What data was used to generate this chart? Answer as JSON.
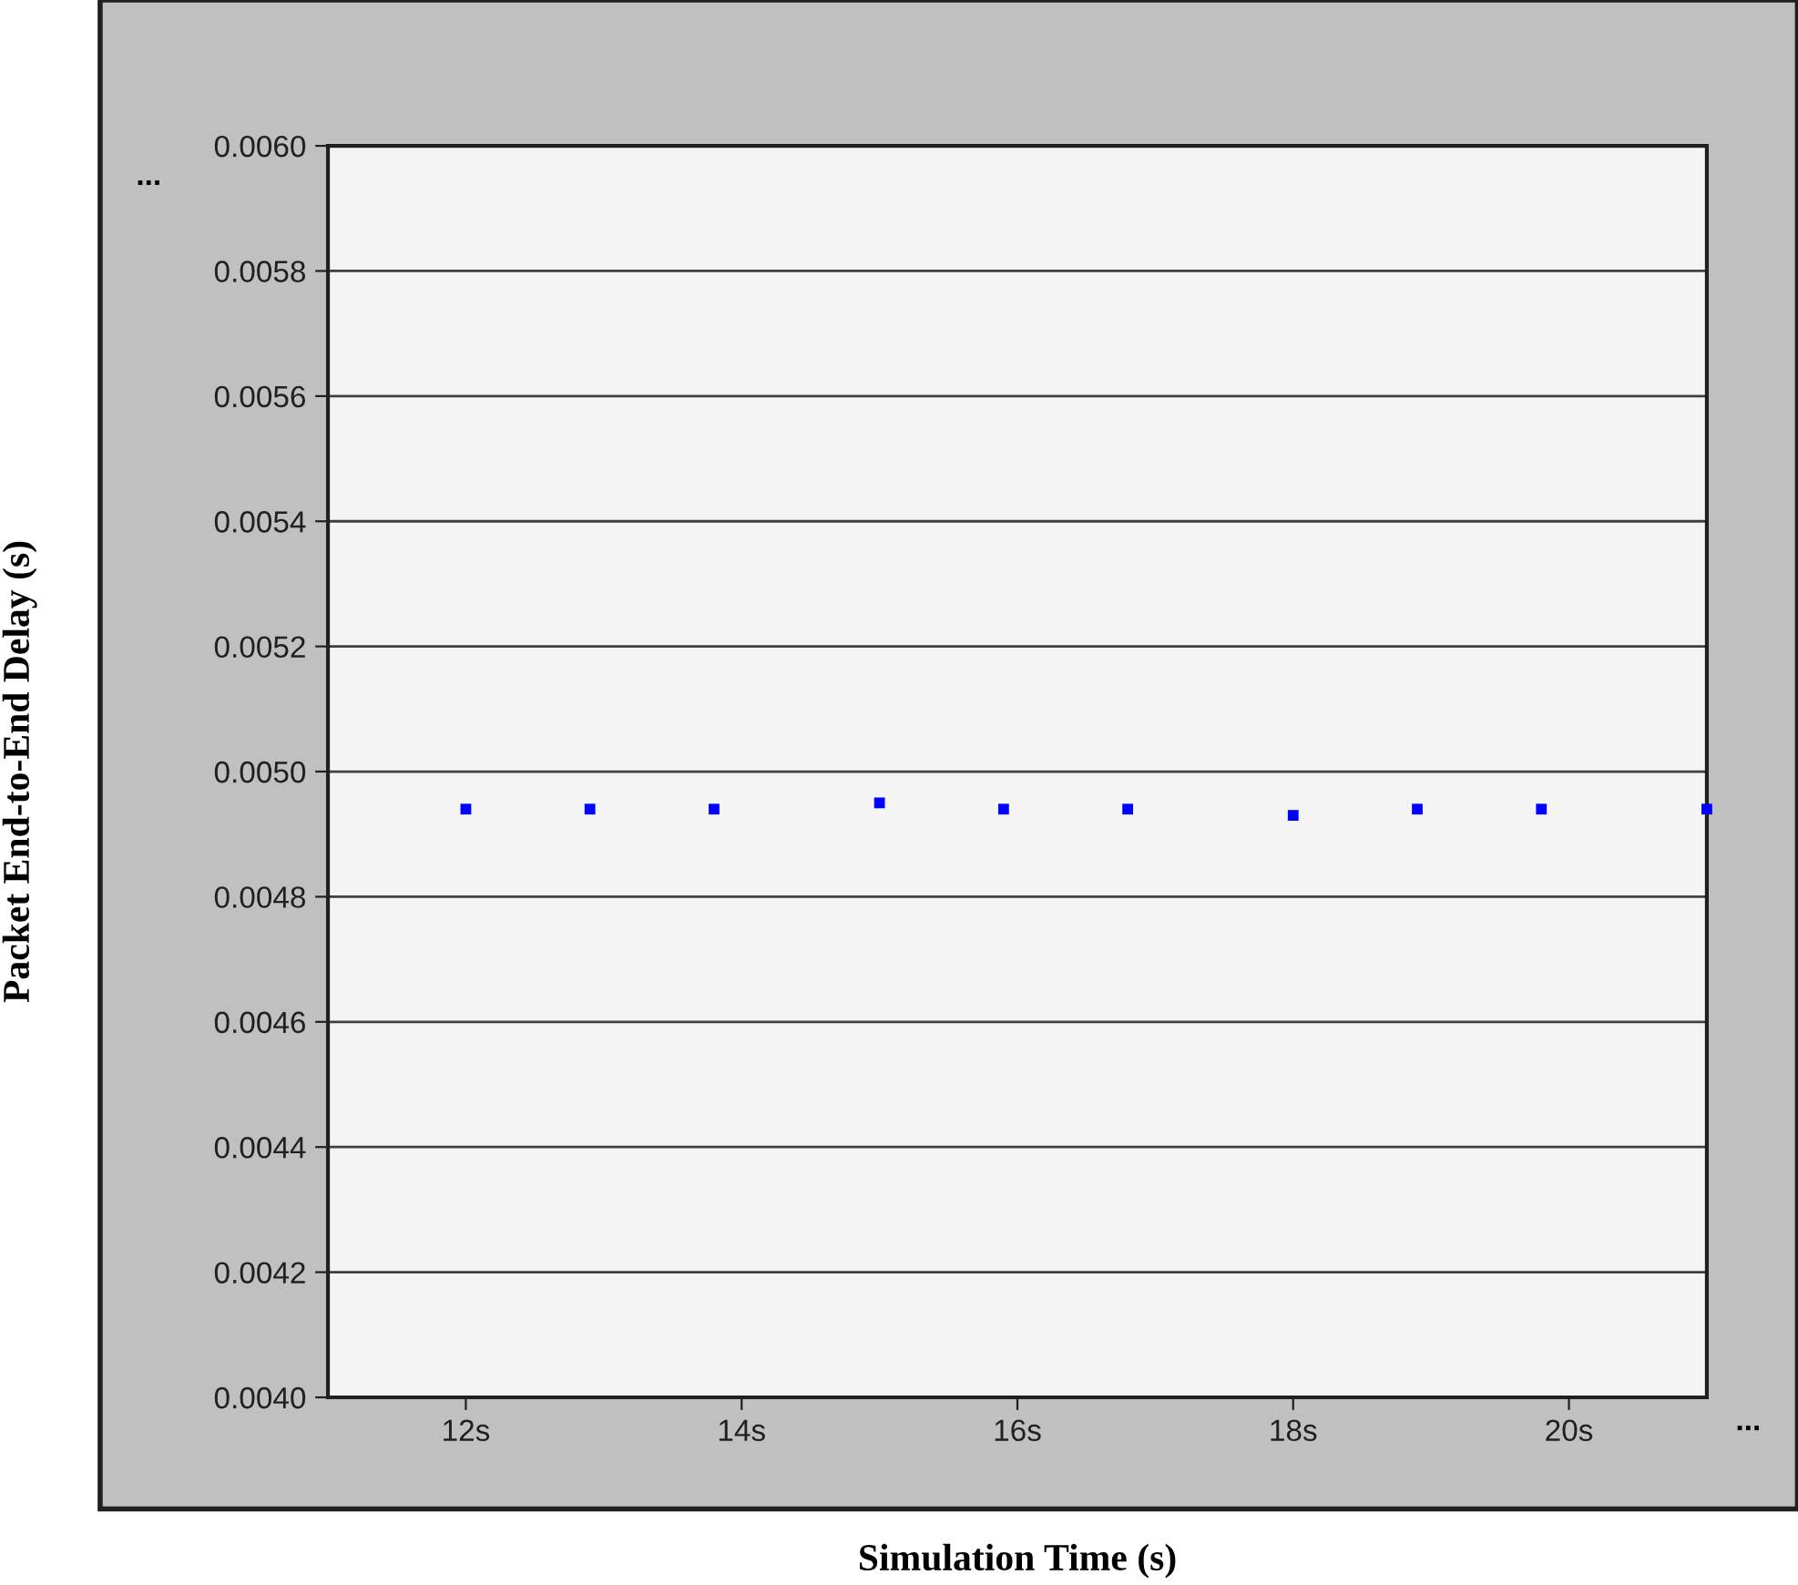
{
  "chart_data": {
    "type": "scatter",
    "xlabel": "Simulation Time (s)",
    "ylabel": "Packet End-to-End Delay (s)",
    "x": [
      12,
      12.9,
      13.8,
      15.0,
      15.9,
      16.8,
      18.0,
      18.9,
      19.8,
      21.0
    ],
    "series": [
      {
        "color": "#0000ff",
        "values": [
          0.00494,
          0.00494,
          0.00494,
          0.00495,
          0.00494,
          0.00494,
          0.00493,
          0.00494,
          0.00494,
          0.00494
        ]
      }
    ],
    "xlim": [
      11,
      21
    ],
    "ylim": [
      0.004,
      0.006
    ],
    "xticks": [
      {
        "value": 12,
        "label": "12s"
      },
      {
        "value": 14,
        "label": "14s"
      },
      {
        "value": 16,
        "label": "16s"
      },
      {
        "value": 18,
        "label": "18s"
      },
      {
        "value": 20,
        "label": "20s"
      }
    ],
    "yticks": [
      {
        "value": 0.004,
        "label": "0.0040"
      },
      {
        "value": 0.0042,
        "label": "0.0042"
      },
      {
        "value": 0.0044,
        "label": "0.0044"
      },
      {
        "value": 0.0046,
        "label": "0.0046"
      },
      {
        "value": 0.0048,
        "label": "0.0048"
      },
      {
        "value": 0.005,
        "label": "0.0050"
      },
      {
        "value": 0.0052,
        "label": "0.0052"
      },
      {
        "value": 0.0054,
        "label": "0.0054"
      },
      {
        "value": 0.0056,
        "label": "0.0056"
      },
      {
        "value": 0.0058,
        "label": "0.0058"
      },
      {
        "value": 0.006,
        "label": "0.0060"
      }
    ],
    "grid": "y",
    "marker": "square",
    "legend": false,
    "annotations": [
      "...",
      "..."
    ]
  }
}
